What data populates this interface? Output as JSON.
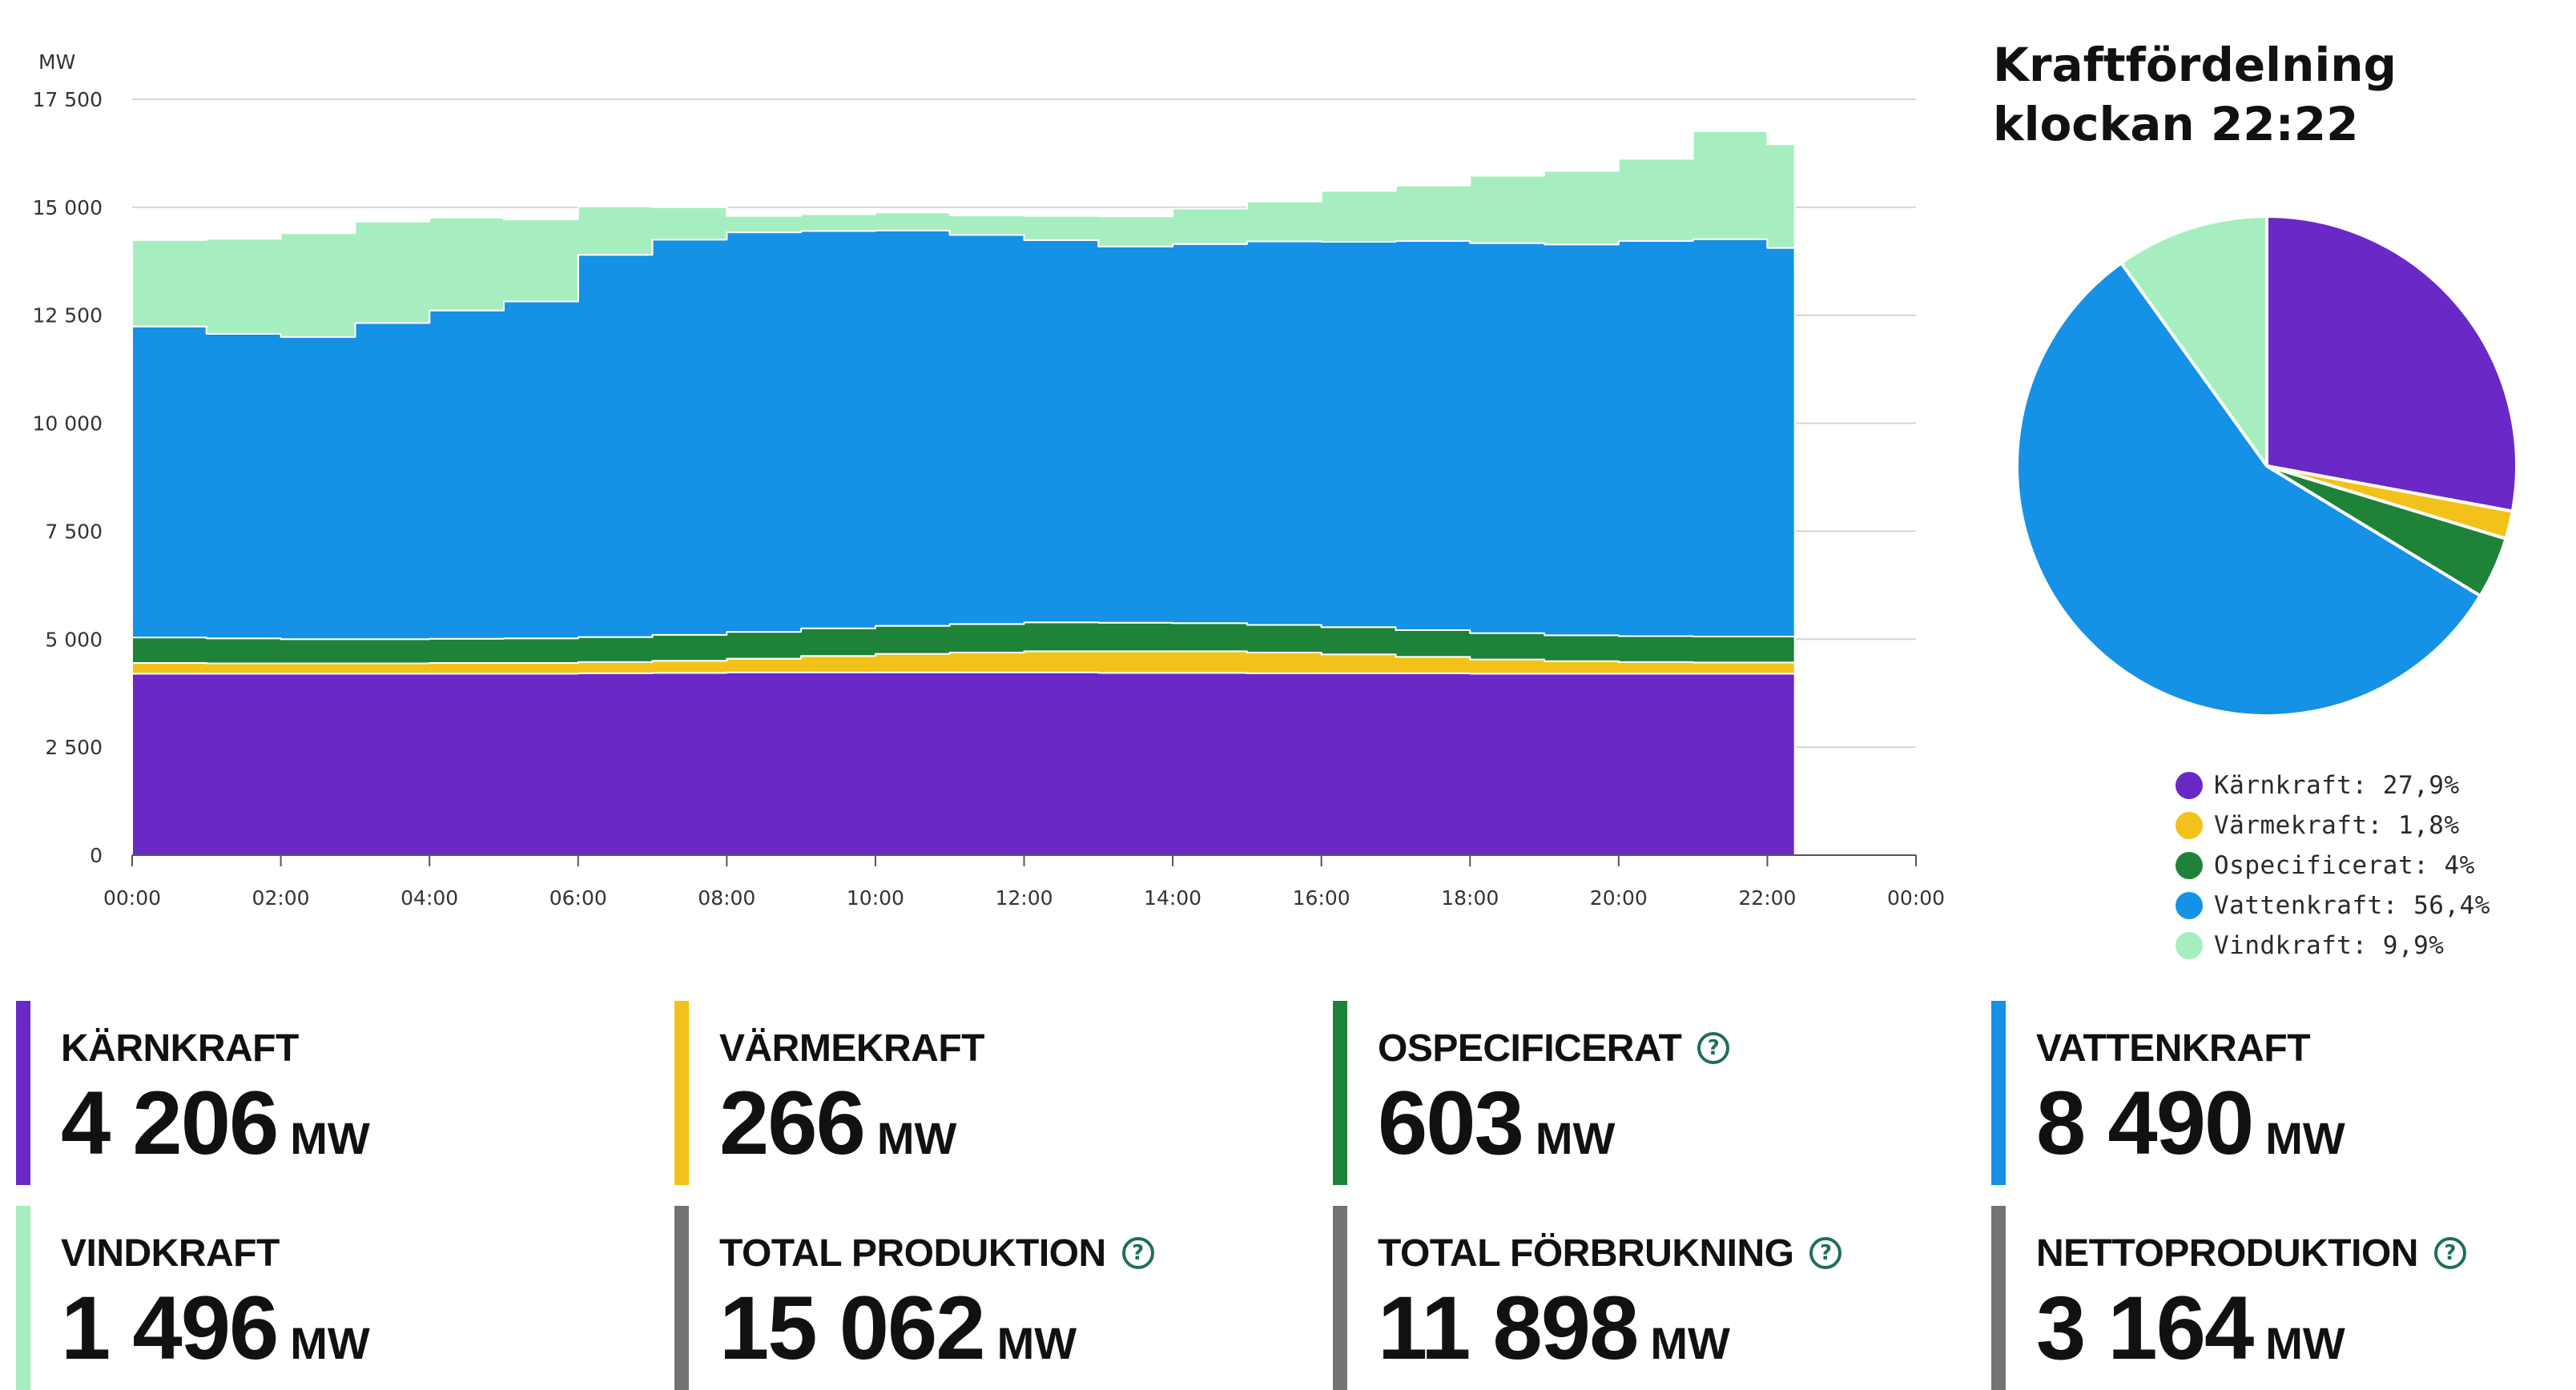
{
  "chart_data": {
    "type": "area",
    "stacked": true,
    "ylabel": "MW",
    "ylim": [
      0,
      17500
    ],
    "yticks": [
      0,
      2500,
      5000,
      7500,
      10000,
      12500,
      15000,
      17500
    ],
    "ytick_labels": [
      "0",
      "2 500",
      "5 000",
      "7 500",
      "10 000",
      "12 500",
      "15 000",
      "17 500"
    ],
    "xlim": [
      0,
      24
    ],
    "xticks": [
      0,
      2,
      4,
      6,
      8,
      10,
      12,
      14,
      16,
      18,
      20,
      22,
      24
    ],
    "xtick_labels": [
      "00:00",
      "02:00",
      "04:00",
      "06:00",
      "08:00",
      "10:00",
      "12:00",
      "14:00",
      "16:00",
      "18:00",
      "20:00",
      "22:00",
      "00:00"
    ],
    "grid": "horizontal",
    "x": [
      0,
      1,
      2,
      3,
      4,
      5,
      6,
      7,
      8,
      9,
      10,
      11,
      12,
      13,
      14,
      15,
      16,
      17,
      18,
      19,
      20,
      21,
      22,
      22.37
    ],
    "series": [
      {
        "name": "Kärnkraft",
        "color": "#6a28c6",
        "values": [
          4200,
          4200,
          4200,
          4200,
          4200,
          4200,
          4210,
          4220,
          4230,
          4230,
          4230,
          4230,
          4230,
          4220,
          4220,
          4210,
          4210,
          4210,
          4200,
          4200,
          4200,
          4200,
          4200,
          4206
        ]
      },
      {
        "name": "Värmekraft",
        "color": "#f2c21b",
        "values": [
          250,
          240,
          240,
          240,
          250,
          250,
          260,
          280,
          320,
          380,
          430,
          460,
          490,
          500,
          500,
          480,
          440,
          380,
          330,
          290,
          270,
          260,
          260,
          266
        ]
      },
      {
        "name": "Ospecificerat",
        "color": "#1e8238",
        "values": [
          590,
          580,
          560,
          560,
          560,
          570,
          580,
          600,
          620,
          640,
          650,
          660,
          670,
          660,
          650,
          640,
          630,
          620,
          610,
          600,
          600,
          600,
          600,
          603
        ]
      },
      {
        "name": "Vattenkraft",
        "color": "#1591e6",
        "values": [
          7200,
          7050,
          7000,
          7320,
          7600,
          7800,
          8850,
          9150,
          9250,
          9200,
          9150,
          9010,
          8850,
          8710,
          8780,
          8880,
          8920,
          9010,
          9030,
          9050,
          9150,
          9200,
          9000,
          8490
        ]
      },
      {
        "name": "Vindkraft",
        "color": "#a6eebf",
        "values": [
          2000,
          2200,
          2400,
          2350,
          2150,
          1900,
          1120,
          750,
          380,
          390,
          420,
          450,
          560,
          700,
          820,
          920,
          1180,
          1280,
          1560,
          1700,
          1900,
          2500,
          2400,
          1496
        ]
      }
    ]
  },
  "pie": {
    "title_line1": "Kraftfördelning",
    "title_line2": "klockan 22:22",
    "slices": [
      {
        "name": "Kärnkraft",
        "value": 27.9,
        "color": "#6a28c6",
        "label": "Kärnkraft: 27,9%"
      },
      {
        "name": "Värmekraft",
        "value": 1.8,
        "color": "#f2c21b",
        "label": "Värmekraft: 1,8%"
      },
      {
        "name": "Ospecificerat",
        "value": 4,
        "color": "#1e8238",
        "label": "Ospecificerat: 4%"
      },
      {
        "name": "Vattenkraft",
        "value": 56.4,
        "color": "#1591e6",
        "label": "Vattenkraft: 56,4%"
      },
      {
        "name": "Vindkraft",
        "value": 9.9,
        "color": "#a6eebf",
        "label": "Vindkraft: 9,9%"
      }
    ]
  },
  "stats": [
    {
      "label": "KÄRNKRAFT",
      "value": "4 206",
      "unit": "MW",
      "color": "#6a28c6"
    },
    {
      "label": "VÄRMEKRAFT",
      "value": "266",
      "unit": "MW",
      "color": "#f2c21b"
    },
    {
      "label": "OSPECIFICERAT",
      "value": "603",
      "unit": "MW",
      "color": "#1e8238"
    },
    {
      "label": "VATTENKRAFT",
      "value": "8 490",
      "unit": "MW",
      "color": "#1591e6"
    },
    {
      "label": "VINDKRAFT",
      "value": "1 496",
      "unit": "MW",
      "color": "#a6eebf"
    },
    {
      "label": "TOTAL PRODUKTION",
      "value": "15 062",
      "unit": "MW",
      "color": "#737373"
    },
    {
      "label": "TOTAL FÖRBRUKNING",
      "value": "11 898",
      "unit": "MW",
      "color": "#737373"
    },
    {
      "label": "NETTOPRODUKTION",
      "value": "3 164",
      "unit": "MW",
      "color": "#737373"
    }
  ],
  "help_icon": {
    "glyph": "?",
    "color": "#1f6f5a",
    "icon": "question-circle-icon"
  }
}
